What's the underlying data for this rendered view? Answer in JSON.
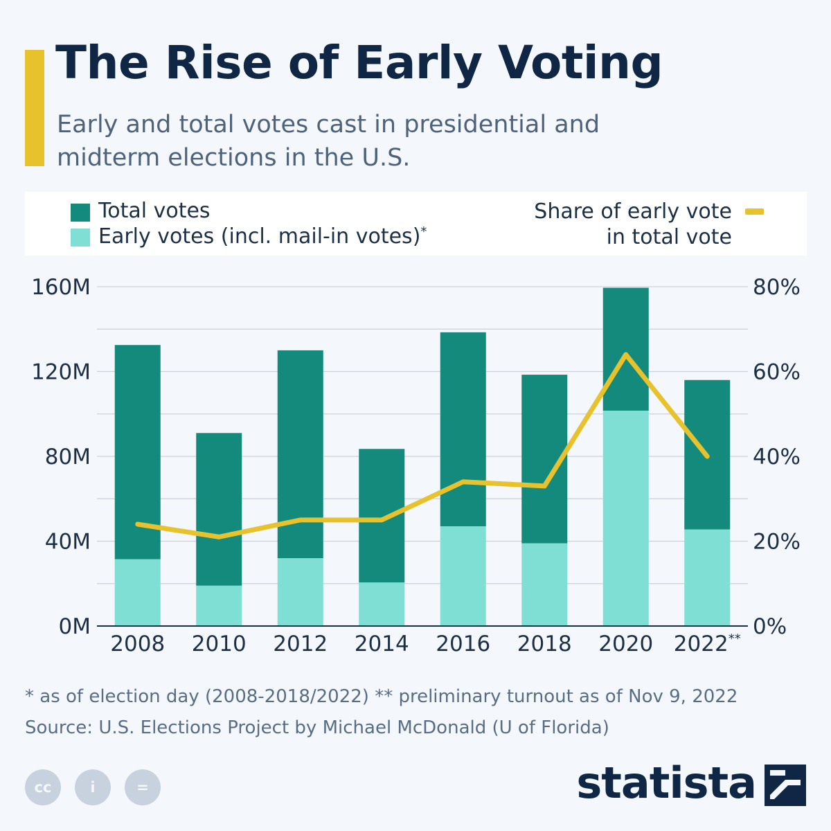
{
  "header": {
    "title": "The Rise of Early Voting",
    "subtitle_line1": "Early and total votes cast in presidential and",
    "subtitle_line2": "midterm elections in the U.S."
  },
  "legend": {
    "total": "Total votes",
    "early": "Early votes (incl. mail-in votes)",
    "early_marker": "*",
    "share_line1": "Share of early vote",
    "share_line2": "in total vote"
  },
  "colors": {
    "total": "#138a7c",
    "early": "#80dfd5",
    "share": "#e8c22c",
    "accent": "#e8c22c",
    "grid": "#c9d1da"
  },
  "chart_data": {
    "type": "bar",
    "stacked": true,
    "categories": [
      "2008",
      "2010",
      "2012",
      "2014",
      "2016",
      "2018",
      "2020",
      "2022"
    ],
    "category_markers": [
      "",
      "",
      "",
      "",
      "",
      "",
      "",
      "**"
    ],
    "series": [
      {
        "name": "Early votes (incl. mail-in votes)",
        "values": [
          31.5,
          19,
          32,
          20.5,
          47,
          39,
          101.5,
          45.5
        ]
      },
      {
        "name": "Total votes",
        "values": [
          132.5,
          91,
          130,
          83.5,
          138.5,
          118.5,
          159.5,
          116
        ]
      }
    ],
    "line_series": {
      "name": "Share of early vote in total vote",
      "axis": "right",
      "values": [
        24,
        21,
        25,
        25,
        34,
        33,
        64,
        40
      ]
    },
    "y_left": {
      "min": 0,
      "max": 160,
      "ticks": [
        "0M",
        "40M",
        "80M",
        "120M",
        "160M"
      ]
    },
    "y_right": {
      "min": 0,
      "max": 80,
      "ticks": [
        "0%",
        "20%",
        "40%",
        "60%",
        "80%"
      ]
    }
  },
  "footnotes": {
    "note": "* as of election day (2008-2018/2022)    ** preliminary turnout as of Nov 9, 2022",
    "source": "Source: U.S. Elections Project by Michael McDonald (U of Florida)"
  },
  "license_icons": [
    "cc",
    "i",
    "="
  ],
  "icon_names": [
    "creative-commons-icon",
    "attribution-icon",
    "no-derivatives-icon"
  ],
  "brand": {
    "name": "statista"
  }
}
